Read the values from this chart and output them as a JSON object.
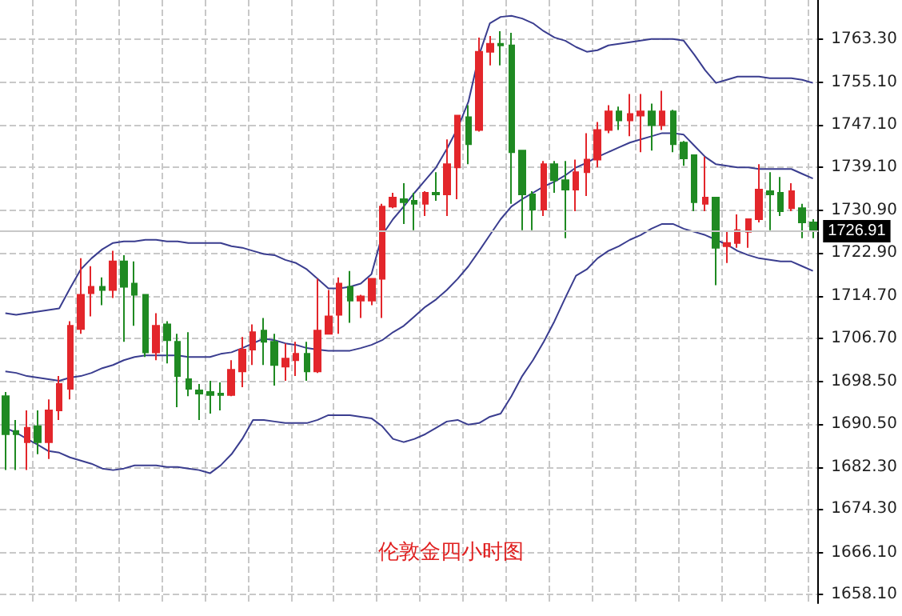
{
  "chart_data": {
    "type": "candlestick",
    "title": "伦敦金四小时图",
    "categories": [
      null,
      null,
      null,
      null,
      null,
      null,
      null,
      null,
      null,
      null,
      null,
      null,
      null,
      null,
      null,
      null,
      null,
      null,
      null,
      null,
      null,
      null,
      null,
      null,
      null,
      null,
      null,
      null,
      null,
      null,
      null,
      null,
      null,
      null,
      null,
      null,
      null,
      null,
      null,
      null,
      null,
      null,
      null,
      null,
      null,
      null,
      null,
      null,
      null,
      null,
      null,
      null,
      null,
      null,
      null,
      null,
      null,
      null,
      null,
      null,
      null,
      null,
      null,
      null,
      null,
      null,
      null,
      null,
      null,
      null,
      null,
      null,
      null,
      null,
      null,
      null
    ],
    "ohlc": [
      [
        1695.7,
        1696.5,
        1681.7,
        1688.5
      ],
      [
        1689.1,
        1691.2,
        1681.7,
        1688.5
      ],
      [
        1687.0,
        1693.0,
        1681.7,
        1689.7
      ],
      [
        1690.0,
        1693.0,
        1684.7,
        1687.0
      ],
      [
        1687.0,
        1695.1,
        1683.8,
        1693.0
      ],
      [
        1693.0,
        1699.5,
        1691.2,
        1698.0
      ],
      [
        1697.1,
        1709.9,
        1695.1,
        1709.0
      ],
      [
        1708.4,
        1721.8,
        1707.5,
        1714.9
      ],
      [
        1715.2,
        1720.3,
        1710.8,
        1716.4
      ],
      [
        1716.4,
        1718.2,
        1712.9,
        1715.8
      ],
      [
        1715.8,
        1723.2,
        1714.3,
        1721.2
      ],
      [
        1721.2,
        1722.4,
        1706.0,
        1716.4
      ],
      [
        1717.0,
        1721.2,
        1709.0,
        1714.9
      ],
      [
        1714.9,
        1714.9,
        1703.1,
        1704.0
      ],
      [
        1704.0,
        1711.4,
        1702.5,
        1709.0
      ],
      [
        1709.3,
        1709.9,
        1701.9,
        1706.3
      ],
      [
        1706.0,
        1707.5,
        1693.6,
        1699.5
      ],
      [
        1698.9,
        1707.8,
        1695.7,
        1697.1
      ],
      [
        1696.8,
        1698.0,
        1691.2,
        1696.2
      ],
      [
        1696.5,
        1698.6,
        1692.4,
        1695.9
      ],
      [
        1696.2,
        1698.3,
        1693.0,
        1695.9
      ],
      [
        1695.9,
        1702.5,
        1695.7,
        1700.7
      ],
      [
        1700.4,
        1706.9,
        1697.4,
        1704.5
      ],
      [
        1704.5,
        1709.3,
        1701.6,
        1707.8
      ],
      [
        1708.1,
        1710.5,
        1701.6,
        1706.0
      ],
      [
        1706.0,
        1707.5,
        1697.7,
        1701.6
      ],
      [
        1701.3,
        1705.7,
        1698.6,
        1702.8
      ],
      [
        1702.5,
        1706.0,
        1699.5,
        1703.7
      ],
      [
        1703.7,
        1706.0,
        1698.6,
        1700.4
      ],
      [
        1700.4,
        1717.9,
        1700.1,
        1708.1
      ],
      [
        1707.5,
        1715.8,
        1707.5,
        1710.8
      ],
      [
        1711.1,
        1718.2,
        1707.5,
        1717.0
      ],
      [
        1716.4,
        1719.4,
        1709.6,
        1713.8
      ],
      [
        1713.8,
        1714.9,
        1710.5,
        1714.6
      ],
      [
        1713.8,
        1717.9,
        1712.9,
        1717.9
      ],
      [
        1717.9,
        1732.1,
        1710.5,
        1731.6
      ],
      [
        1731.6,
        1734.2,
        1731.3,
        1733.3
      ],
      [
        1733.0,
        1736.0,
        1728.3,
        1732.4
      ],
      [
        1732.7,
        1734.2,
        1727.1,
        1732.1
      ],
      [
        1732.1,
        1734.5,
        1729.8,
        1734.2
      ],
      [
        1734.2,
        1738.1,
        1732.7,
        1733.9
      ],
      [
        1733.9,
        1744.3,
        1729.8,
        1739.6
      ],
      [
        1739.0,
        1748.8,
        1733.0,
        1748.8
      ],
      [
        1748.5,
        1750.8,
        1739.6,
        1743.4
      ],
      [
        1746.1,
        1763.6,
        1745.8,
        1760.9
      ],
      [
        1760.9,
        1763.9,
        1758.3,
        1762.4
      ],
      [
        1762.4,
        1764.8,
        1758.3,
        1762.1
      ],
      [
        1762.1,
        1764.5,
        1732.1,
        1741.9
      ],
      [
        1742.2,
        1742.2,
        1727.1,
        1733.9
      ],
      [
        1733.9,
        1734.5,
        1727.1,
        1731.0
      ],
      [
        1731.0,
        1740.2,
        1729.8,
        1739.6
      ],
      [
        1739.6,
        1740.2,
        1734.2,
        1736.6
      ],
      [
        1736.6,
        1740.2,
        1725.6,
        1734.8
      ],
      [
        1734.8,
        1740.5,
        1730.7,
        1738.1
      ],
      [
        1738.1,
        1745.5,
        1733.6,
        1740.5
      ],
      [
        1740.5,
        1747.6,
        1739.0,
        1746.1
      ],
      [
        1746.1,
        1750.8,
        1745.5,
        1749.6
      ],
      [
        1749.6,
        1750.5,
        1746.1,
        1747.9
      ],
      [
        1747.9,
        1752.9,
        1744.9,
        1749.1
      ],
      [
        1748.8,
        1752.9,
        1741.9,
        1749.6
      ],
      [
        1749.6,
        1751.1,
        1742.2,
        1747.0
      ],
      [
        1747.0,
        1753.5,
        1746.1,
        1749.6
      ],
      [
        1749.6,
        1749.9,
        1741.9,
        1743.4
      ],
      [
        1743.7,
        1744.0,
        1739.3,
        1740.7
      ],
      [
        1741.3,
        1741.3,
        1730.7,
        1732.4
      ],
      [
        1732.1,
        1741.0,
        1730.7,
        1733.3
      ],
      [
        1733.3,
        1733.3,
        1716.7,
        1723.8
      ],
      [
        1724.1,
        1726.8,
        1720.9,
        1724.7
      ],
      [
        1724.7,
        1730.1,
        1723.8,
        1727.1
      ],
      [
        1726.8,
        1729.2,
        1723.8,
        1729.2
      ],
      [
        1729.2,
        1739.6,
        1728.6,
        1734.8
      ],
      [
        1734.5,
        1738.1,
        1727.1,
        1733.9
      ],
      [
        1734.2,
        1737.2,
        1729.8,
        1730.7
      ],
      [
        1731.3,
        1736.0,
        1730.7,
        1734.5
      ],
      [
        1731.3,
        1732.1,
        1725.6,
        1728.6
      ],
      [
        1728.6,
        1729.2,
        1725.6,
        1726.91
      ]
    ],
    "colors": [
      "#1f8a22",
      "#1f8a22",
      "#e3262b",
      "#1f8a22",
      "#e3262b",
      "#e3262b",
      "#e3262b",
      "#e3262b",
      "#e3262b",
      "#1f8a22",
      "#e3262b",
      "#1f8a22",
      "#1f8a22",
      "#1f8a22",
      "#e3262b",
      "#1f8a22",
      "#1f8a22",
      "#1f8a22",
      "#1f8a22",
      "#1f8a22",
      "#1f8a22",
      "#e3262b",
      "#e3262b",
      "#e3262b",
      "#1f8a22",
      "#1f8a22",
      "#e3262b",
      "#e3262b",
      "#1f8a22",
      "#e3262b",
      "#e3262b",
      "#e3262b",
      "#1f8a22",
      "#e3262b",
      "#e3262b",
      "#e3262b",
      "#e3262b",
      "#1f8a22",
      "#1f8a22",
      "#e3262b",
      "#1f8a22",
      "#e3262b",
      "#e3262b",
      "#1f8a22",
      "#e3262b",
      "#e3262b",
      "#1f8a22",
      "#1f8a22",
      "#1f8a22",
      "#1f8a22",
      "#e3262b",
      "#1f8a22",
      "#1f8a22",
      "#e3262b",
      "#e3262b",
      "#e3262b",
      "#e3262b",
      "#1f8a22",
      "#e3262b",
      "#e3262b",
      "#1f8a22",
      "#e3262b",
      "#1f8a22",
      "#1f8a22",
      "#1f8a22",
      "#e3262b",
      "#1f8a22",
      "#e3262b",
      "#e3262b",
      "#e3262b",
      "#e3262b",
      "#1f8a22",
      "#1f8a22",
      "#e3262b",
      "#1f8a22",
      "#1f8a22"
    ],
    "series": [
      {
        "type": "line",
        "color": "#3a3d8f",
        "values": [
          1711.4,
          1711.1,
          1711.4,
          1711.7,
          1712.0,
          1712.3,
          1716.1,
          1719.7,
          1721.8,
          1723.5,
          1724.7,
          1725.0,
          1725.0,
          1725.3,
          1725.3,
          1725.0,
          1725.0,
          1724.7,
          1724.7,
          1724.7,
          1724.7,
          1724.1,
          1723.8,
          1723.2,
          1722.6,
          1722.4,
          1721.5,
          1720.9,
          1719.7,
          1717.9,
          1716.1,
          1716.1,
          1716.4,
          1717.0,
          1718.8,
          1726.2,
          1729.2,
          1731.6,
          1734.2,
          1736.6,
          1739.0,
          1742.5,
          1746.4,
          1751.4,
          1760.3,
          1766.3,
          1767.5,
          1767.7,
          1767.2,
          1766.3,
          1764.8,
          1763.6,
          1763.0,
          1761.8,
          1760.9,
          1761.2,
          1762.1,
          1762.4,
          1762.7,
          1763.0,
          1763.3,
          1763.3,
          1763.3,
          1763.0,
          1760.3,
          1757.4,
          1755.0,
          1755.6,
          1756.2,
          1756.2,
          1756.2,
          1755.9,
          1755.9,
          1755.9,
          1755.6,
          1755.0
        ]
      },
      {
        "type": "line",
        "color": "#3a3d8f",
        "values": [
          1700.4,
          1700.1,
          1699.5,
          1699.2,
          1698.9,
          1698.6,
          1699.2,
          1699.5,
          1700.1,
          1701.0,
          1701.6,
          1702.5,
          1703.1,
          1703.4,
          1703.4,
          1703.4,
          1703.4,
          1703.1,
          1703.1,
          1703.1,
          1703.7,
          1704.0,
          1704.8,
          1705.7,
          1706.6,
          1706.3,
          1705.7,
          1705.4,
          1704.8,
          1704.5,
          1704.3,
          1704.3,
          1704.3,
          1704.8,
          1705.4,
          1706.3,
          1707.8,
          1709.0,
          1710.8,
          1712.6,
          1714.0,
          1715.8,
          1717.9,
          1720.3,
          1723.2,
          1726.2,
          1729.2,
          1731.6,
          1733.0,
          1734.2,
          1735.4,
          1736.3,
          1737.5,
          1739.0,
          1739.9,
          1741.0,
          1741.9,
          1742.8,
          1743.7,
          1744.3,
          1744.9,
          1745.5,
          1745.5,
          1745.2,
          1743.1,
          1741.0,
          1739.6,
          1739.3,
          1739.0,
          1739.0,
          1738.7,
          1738.7,
          1738.7,
          1738.7,
          1737.8,
          1736.9
        ]
      },
      {
        "type": "line",
        "color": "#3a3d8f",
        "values": [
          1689.7,
          1688.8,
          1687.6,
          1686.5,
          1685.3,
          1685.0,
          1684.1,
          1683.5,
          1682.9,
          1682.0,
          1681.7,
          1682.0,
          1682.6,
          1682.6,
          1682.6,
          1682.3,
          1682.3,
          1682.0,
          1681.7,
          1681.1,
          1682.6,
          1684.7,
          1687.6,
          1691.2,
          1691.2,
          1690.9,
          1690.6,
          1690.6,
          1690.6,
          1691.2,
          1692.1,
          1692.1,
          1692.1,
          1691.8,
          1691.5,
          1690.0,
          1687.6,
          1687.0,
          1687.6,
          1688.5,
          1689.7,
          1690.9,
          1691.2,
          1690.3,
          1690.6,
          1691.8,
          1692.4,
          1695.7,
          1699.5,
          1702.5,
          1706.0,
          1709.9,
          1714.3,
          1718.5,
          1719.7,
          1721.8,
          1723.2,
          1724.1,
          1725.3,
          1726.2,
          1727.4,
          1728.3,
          1728.3,
          1727.4,
          1726.8,
          1726.2,
          1725.3,
          1724.4,
          1723.2,
          1722.4,
          1721.8,
          1721.5,
          1721.2,
          1721.2,
          1720.3,
          1719.4
        ]
      }
    ],
    "marker": "none",
    "line_style": "solid",
    "ylim": [
      1656.5,
      1770.7
    ],
    "yticks": [
      {
        "value": 1658.1,
        "label": "1658.10"
      },
      {
        "value": 1666.1,
        "label": "1666.10"
      },
      {
        "value": 1674.3,
        "label": "1674.30"
      },
      {
        "value": 1682.3,
        "label": "1682.30"
      },
      {
        "value": 1690.5,
        "label": "1690.50"
      },
      {
        "value": 1698.5,
        "label": "1698.50"
      },
      {
        "value": 1706.7,
        "label": "1706.70"
      },
      {
        "value": 1714.7,
        "label": "1714.70"
      },
      {
        "value": 1722.9,
        "label": "1722.90"
      },
      {
        "value": 1730.9,
        "label": "1730.90"
      },
      {
        "value": 1739.1,
        "label": "1739.10"
      },
      {
        "value": 1747.1,
        "label": "1747.10"
      },
      {
        "value": 1755.1,
        "label": "1755.10"
      },
      {
        "value": 1763.3,
        "label": "1763.30"
      }
    ],
    "ref_lines": [
      {
        "axis": "y",
        "value": 1726.91,
        "label": "1726.91",
        "color": "#c8c8c8"
      }
    ],
    "grid": true
  }
}
